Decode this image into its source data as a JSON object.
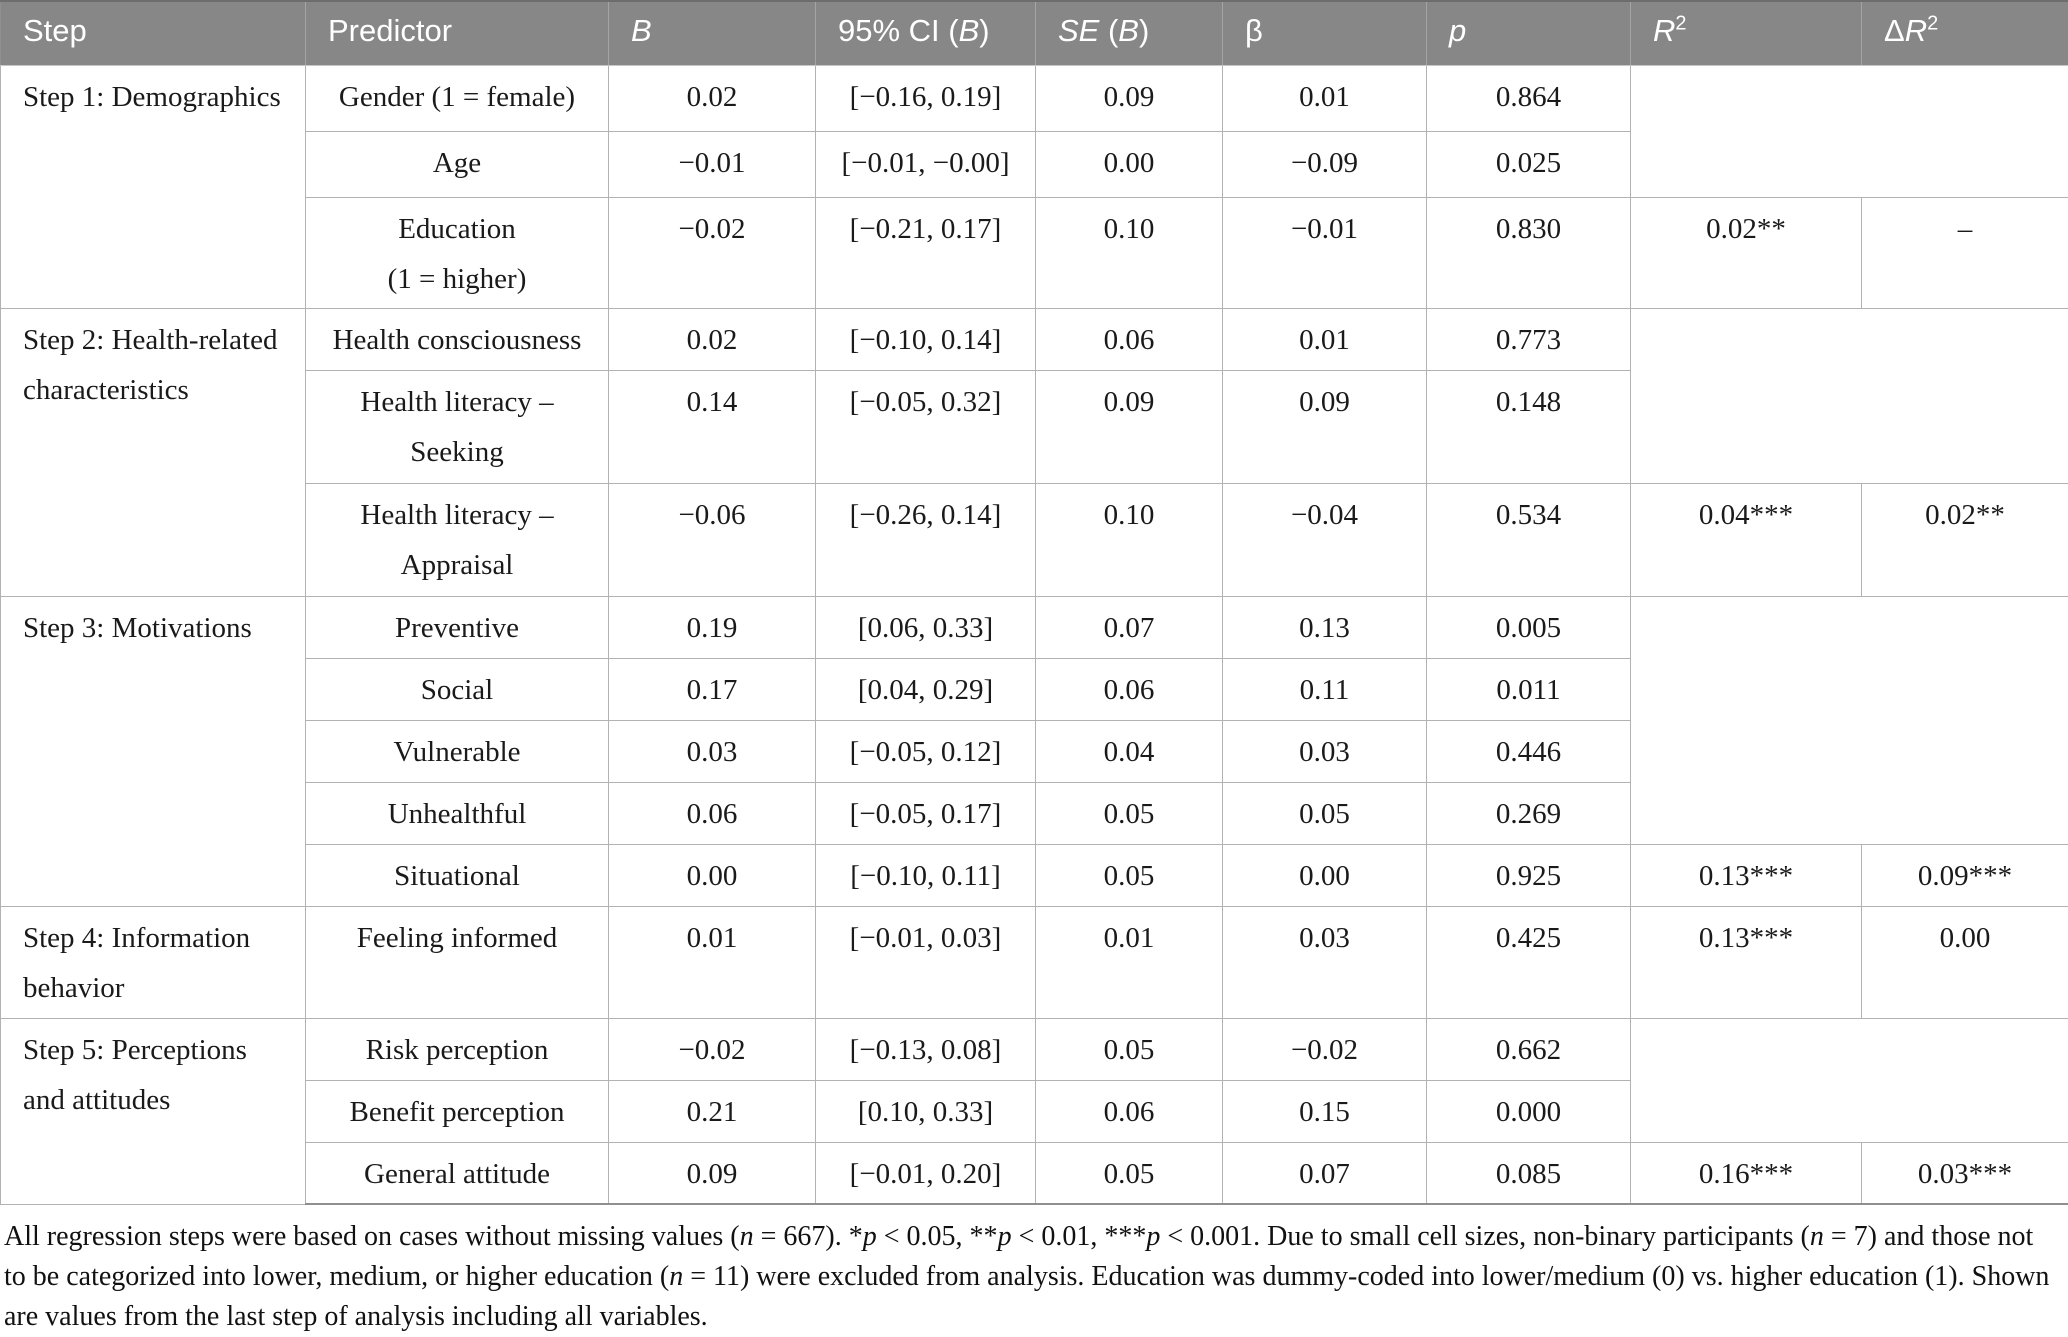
{
  "colors": {
    "header_bg": "#878787",
    "header_text": "#ffffff",
    "grid_border": "#b2b2b2"
  },
  "table": {
    "columns": [
      {
        "name": "step",
        "segs": [
          {
            "t": "Step"
          }
        ]
      },
      {
        "name": "predictor",
        "segs": [
          {
            "t": "Predictor"
          }
        ]
      },
      {
        "name": "b",
        "segs": [
          {
            "t": "B",
            "i": true
          }
        ]
      },
      {
        "name": "ci",
        "segs": [
          {
            "t": "95% CI ("
          },
          {
            "t": "B",
            "i": true
          },
          {
            "t": ")"
          }
        ]
      },
      {
        "name": "se",
        "segs": [
          {
            "t": "SE",
            "i": true
          },
          {
            "t": " ("
          },
          {
            "t": "B",
            "i": true
          },
          {
            "t": ")"
          }
        ]
      },
      {
        "name": "beta",
        "segs": [
          {
            "t": "β"
          }
        ]
      },
      {
        "name": "p",
        "segs": [
          {
            "t": "p",
            "i": true
          }
        ]
      },
      {
        "name": "r2",
        "segs": [
          {
            "t": "R",
            "i": true
          },
          {
            "t": "2",
            "sup": true
          }
        ]
      },
      {
        "name": "delta_r2",
        "segs": [
          {
            "t": "Δ"
          },
          {
            "t": "R",
            "i": true
          },
          {
            "t": "2",
            "sup": true
          }
        ]
      }
    ]
  },
  "steps": [
    {
      "label": "Step 1: Demographics",
      "r2": "0.02**",
      "dr2": "–",
      "rows": [
        {
          "predictor": "Gender (1 = female)",
          "b": "0.02",
          "ci": "[−0.16, 0.19]",
          "se": "0.09",
          "beta": "0.01",
          "p": "0.864"
        },
        {
          "predictor": "Age",
          "b": "−0.01",
          "ci": "[−0.01, −0.00]",
          "se": "0.00",
          "beta": "−0.09",
          "p": "0.025"
        },
        {
          "predictor": "Education\n(1 = higher)",
          "b": "−0.02",
          "ci": "[−0.21, 0.17]",
          "se": "0.10",
          "beta": "−0.01",
          "p": "0.830"
        }
      ]
    },
    {
      "label": "Step 2: Health-related\ncharacteristics",
      "r2": "0.04***",
      "dr2": "0.02**",
      "rows": [
        {
          "predictor": "Health consciousness",
          "b": "0.02",
          "ci": "[−0.10, 0.14]",
          "se": "0.06",
          "beta": "0.01",
          "p": "0.773"
        },
        {
          "predictor": "Health literacy –\nSeeking",
          "b": "0.14",
          "ci": "[−0.05, 0.32]",
          "se": "0.09",
          "beta": "0.09",
          "p": "0.148"
        },
        {
          "predictor": "Health literacy –\nAppraisal",
          "b": "−0.06",
          "ci": "[−0.26, 0.14]",
          "se": "0.10",
          "beta": "−0.04",
          "p": "0.534"
        }
      ]
    },
    {
      "label": "Step 3: Motivations",
      "r2": "0.13***",
      "dr2": "0.09***",
      "rows": [
        {
          "predictor": "Preventive",
          "b": "0.19",
          "ci": "[0.06, 0.33]",
          "se": "0.07",
          "beta": "0.13",
          "p": "0.005"
        },
        {
          "predictor": "Social",
          "b": "0.17",
          "ci": "[0.04, 0.29]",
          "se": "0.06",
          "beta": "0.11",
          "p": "0.011"
        },
        {
          "predictor": "Vulnerable",
          "b": "0.03",
          "ci": "[−0.05, 0.12]",
          "se": "0.04",
          "beta": "0.03",
          "p": "0.446"
        },
        {
          "predictor": "Unhealthful",
          "b": "0.06",
          "ci": "[−0.05, 0.17]",
          "se": "0.05",
          "beta": "0.05",
          "p": "0.269"
        },
        {
          "predictor": "Situational",
          "b": "0.00",
          "ci": "[−0.10, 0.11]",
          "se": "0.05",
          "beta": "0.00",
          "p": "0.925"
        }
      ]
    },
    {
      "label": "Step 4: Information\nbehavior",
      "r2": "0.13***",
      "dr2": "0.00",
      "rows": [
        {
          "predictor": "Feeling informed",
          "b": "0.01",
          "ci": "[−0.01, 0.03]",
          "se": "0.01",
          "beta": "0.03",
          "p": "0.425"
        }
      ]
    },
    {
      "label": "Step 5: Perceptions\nand attitudes",
      "r2": "0.16***",
      "dr2": "0.03***",
      "rows": [
        {
          "predictor": "Risk perception",
          "b": "−0.02",
          "ci": "[−0.13, 0.08]",
          "se": "0.05",
          "beta": "−0.02",
          "p": "0.662"
        },
        {
          "predictor": "Benefit perception",
          "b": "0.21",
          "ci": "[0.10, 0.33]",
          "se": "0.06",
          "beta": "0.15",
          "p": "0.000"
        },
        {
          "predictor": "General attitude",
          "b": "0.09",
          "ci": "[−0.01, 0.20]",
          "se": "0.05",
          "beta": "0.07",
          "p": "0.085"
        }
      ]
    }
  ],
  "footnote": {
    "segments": [
      {
        "t": "All regression steps were based on cases without missing values ("
      },
      {
        "t": "n",
        "i": true
      },
      {
        "t": " = 667). *"
      },
      {
        "t": "p",
        "i": true
      },
      {
        "t": " < 0.05, **"
      },
      {
        "t": "p",
        "i": true
      },
      {
        "t": " < 0.01, ***"
      },
      {
        "t": "p",
        "i": true
      },
      {
        "t": " < 0.001. Due to small cell sizes, non-binary participants ("
      },
      {
        "t": "n",
        "i": true
      },
      {
        "t": " = 7) and those not to be categorized into lower, medium, or higher education ("
      },
      {
        "t": "n",
        "i": true
      },
      {
        "t": " = 11) were excluded from analysis. Education was dummy-coded into lower/medium (0) vs. higher education (1). Shown are values from the last step of analysis including all variables."
      }
    ]
  }
}
